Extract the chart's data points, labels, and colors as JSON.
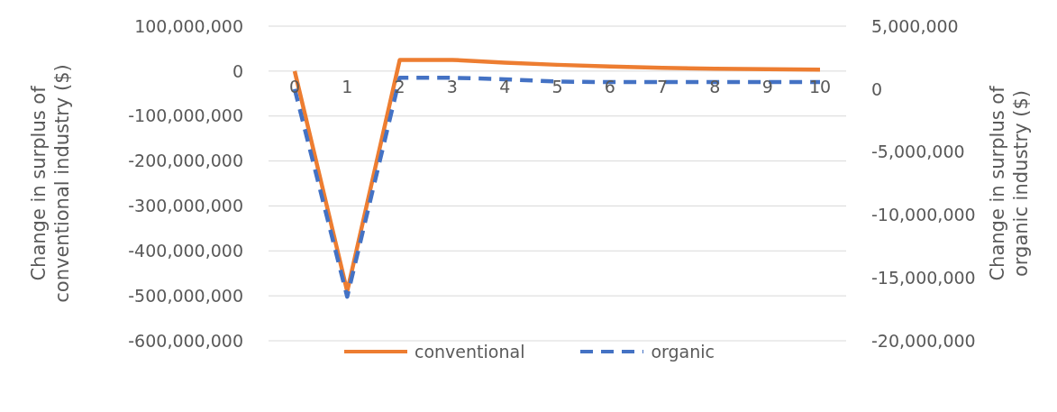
{
  "chart_data": {
    "type": "line",
    "ylabel": "Change in surplus of conventional industry ($)",
    "y2label": "Change in surplus of organic industry ($)",
    "categories": [
      "0",
      "1",
      "2",
      "3",
      "4",
      "5",
      "6",
      "7",
      "8",
      "9",
      "10"
    ],
    "series": [
      {
        "name": "conventional",
        "color": "#ed7d31",
        "line_style": "solid",
        "values": [
          0,
          -490000000,
          25000000,
          25000000,
          19000000,
          14000000,
          10000000,
          7000000,
          5000000,
          4000000,
          3000000
        ]
      },
      {
        "name": "organic",
        "color": "#4472c4",
        "line_style": "dashed",
        "axis": "y2",
        "values": [
          0,
          -16500000,
          900000,
          900000,
          780000,
          600000,
          550000,
          550000,
          550000,
          550000,
          550000
        ]
      }
    ],
    "ylim": [
      -600000000,
      100000000
    ],
    "yticks": [
      {
        "value": -600000000,
        "label": "-600,000,000"
      },
      {
        "value": -500000000,
        "label": "-500,000,000"
      },
      {
        "value": -400000000,
        "label": "-400,000,000"
      },
      {
        "value": -300000000,
        "label": "-300,000,000"
      },
      {
        "value": -200000000,
        "label": "-200,000,000"
      },
      {
        "value": -100000000,
        "label": "-100,000,000"
      },
      0,
      {
        "value": 100000000,
        "label": "100,000,000"
      }
    ],
    "y2lim": [
      -20000000,
      5000000
    ],
    "y2ticks": [
      {
        "value": -20000000,
        "label": "-20,000,000"
      },
      {
        "value": -15000000,
        "label": "-15,000,000"
      },
      {
        "value": -10000000,
        "label": "-10,000,000"
      },
      {
        "value": -5000000,
        "label": "-5,000,000"
      },
      0,
      {
        "value": 5000000,
        "label": "5,000,000"
      }
    ],
    "grid": "y",
    "legend": "bottom",
    "marker": "none"
  }
}
